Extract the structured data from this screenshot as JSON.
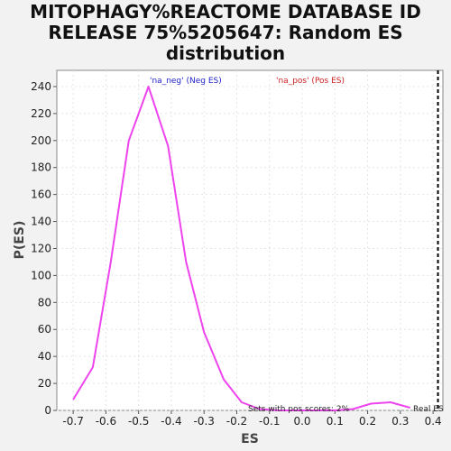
{
  "chart_data": {
    "type": "line",
    "title_lines": [
      "MITOPHAGY%REACTOME DATABASE ID",
      "RELEASE 75%5205647: Random ES",
      "distribution"
    ],
    "xlabel": "ES",
    "ylabel": "P(ES)",
    "xlim": [
      -0.75,
      0.43
    ],
    "ylim": [
      0,
      252
    ],
    "xticks": [
      -0.7,
      -0.6,
      -0.5,
      -0.4,
      -0.3,
      -0.2,
      -0.1,
      0.0,
      0.1,
      0.2,
      0.3,
      0.4
    ],
    "xtick_labels": [
      "-0.7",
      "-0.6",
      "-0.5",
      "-0.4",
      "-0.3",
      "-0.2",
      "-0.1",
      "0.0",
      "0.1",
      "0.2",
      "0.3",
      "0.4"
    ],
    "yticks": [
      0,
      20,
      40,
      60,
      80,
      100,
      120,
      140,
      160,
      180,
      200,
      220,
      240
    ],
    "ytick_labels": [
      "0",
      "20",
      "40",
      "60",
      "80",
      "100",
      "120",
      "140",
      "160",
      "180",
      "200",
      "220",
      "240"
    ],
    "grid": true,
    "series": [
      {
        "color": "#ee44ee",
        "x": [
          -0.7,
          -0.64,
          -0.585,
          -0.53,
          -0.47,
          -0.41,
          -0.355,
          -0.3,
          -0.24,
          -0.185,
          -0.13,
          -0.07,
          0.0,
          0.1,
          0.155,
          0.21,
          0.27,
          0.33
        ],
        "y": [
          8,
          32,
          110,
          200,
          240,
          196,
          110,
          58,
          23,
          6,
          1,
          0,
          0,
          0,
          1,
          5,
          6,
          2
        ]
      }
    ],
    "real_es": {
      "x": 0.415,
      "label": "Real ES",
      "color": "#000000"
    },
    "legend": [
      {
        "label": "'na_neg' (Neg ES)",
        "color": "#2222cc"
      },
      {
        "label": "'na_pos' (Pos ES)",
        "color": "#cc2222"
      }
    ],
    "annotation": "Sets with pos scores: 2%"
  }
}
